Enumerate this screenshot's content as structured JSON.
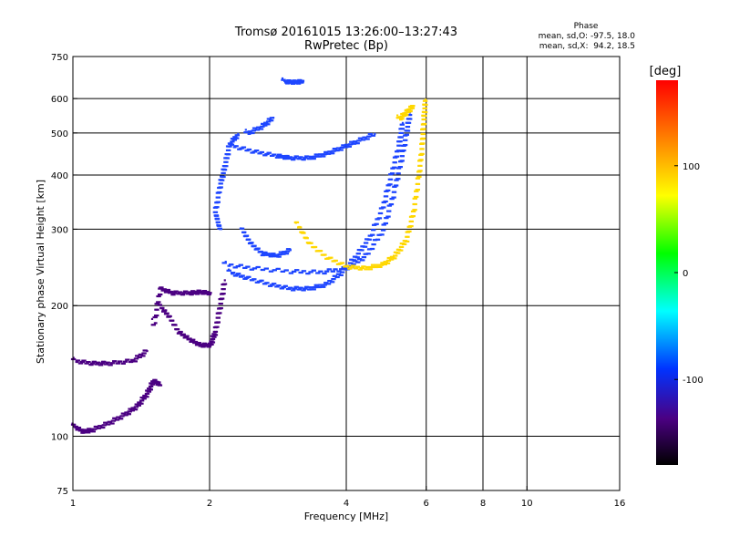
{
  "chart_data": {
    "type": "scatter",
    "title": "Tromsø 20161015 13:26:00–13:27:43",
    "subtitle": "RwPretec (Bp)",
    "xlabel": "Frequency [MHz]",
    "ylabel": "Stationary phase Virtual Height [km]",
    "x_scale": "log",
    "y_scale": "log",
    "xlim": [
      1,
      16
    ],
    "ylim": [
      75,
      750
    ],
    "x_ticks": [
      1,
      2,
      4,
      6,
      8,
      10,
      16
    ],
    "x_tick_labels": [
      "1",
      "2",
      "4",
      "6",
      "8",
      "10",
      "16"
    ],
    "y_ticks": [
      75,
      100,
      200,
      300,
      400,
      500,
      600,
      750
    ],
    "y_tick_labels": [
      "75",
      "100",
      "200",
      "300",
      "400",
      "500",
      "600",
      "750"
    ],
    "grid": true,
    "phase_stats": {
      "heading": "Phase",
      "line_o": "mean, sd,O: -97.5, 18.0",
      "line_x": "mean, sd,X:  94.2, 18.5"
    },
    "colorbar": {
      "label": "[deg]",
      "range": [
        -180,
        180
      ],
      "ticks": [
        100,
        0,
        -100
      ],
      "tick_labels": [
        "100",
        "0",
        "-100"
      ]
    },
    "series": [
      {
        "color": "#1e46ff",
        "phase_deg": -100,
        "traces": [
          {
            "points": [
              [
                2.22,
                470
              ],
              [
                2.5,
                455
              ],
              [
                2.8,
                445
              ],
              [
                3.0,
                440
              ],
              [
                3.3,
                440
              ],
              [
                3.6,
                450
              ],
              [
                3.9,
                465
              ],
              [
                4.2,
                480
              ],
              [
                4.6,
                500
              ]
            ]
          },
          {
            "points": [
              [
                2.2,
                240
              ],
              [
                2.4,
                233
              ],
              [
                2.7,
                225
              ],
              [
                3.0,
                220
              ],
              [
                3.3,
                220
              ],
              [
                3.6,
                225
              ],
              [
                3.9,
                240
              ],
              [
                4.2,
                262
              ],
              [
                4.5,
                290
              ],
              [
                4.8,
                340
              ],
              [
                5.0,
                400
              ],
              [
                5.2,
                470
              ],
              [
                5.3,
                530
              ]
            ]
          },
          {
            "points": [
              [
                2.15,
                250
              ],
              [
                2.5,
                245
              ],
              [
                3.0,
                241
              ],
              [
                3.5,
                240
              ],
              [
                4.0,
                245
              ],
              [
                4.4,
                262
              ],
              [
                4.8,
                300
              ],
              [
                5.05,
                360
              ],
              [
                5.25,
                430
              ],
              [
                5.4,
                500
              ],
              [
                5.5,
                560
              ]
            ]
          },
          {
            "points": [
              [
                2.1,
                300
              ],
              [
                2.05,
                330
              ],
              [
                2.1,
                380
              ],
              [
                2.15,
                420
              ],
              [
                2.2,
                470
              ],
              [
                2.3,
                500
              ]
            ]
          },
          {
            "points": [
              [
                2.4,
                500
              ],
              [
                2.6,
                520
              ],
              [
                2.75,
                545
              ]
            ]
          },
          {
            "points": [
              [
                2.9,
                660
              ],
              [
                3.05,
                658
              ],
              [
                3.2,
                660
              ]
            ]
          },
          {
            "points": [
              [
                2.35,
                300
              ],
              [
                2.45,
                280
              ],
              [
                2.6,
                265
              ],
              [
                2.8,
                262
              ],
              [
                3.0,
                270
              ]
            ]
          }
        ]
      },
      {
        "color": "#ffd700",
        "phase_deg": 94,
        "traces": [
          {
            "points": [
              [
                3.1,
                310
              ],
              [
                3.3,
                280
              ],
              [
                3.6,
                260
              ],
              [
                4.0,
                247
              ],
              [
                4.4,
                245
              ],
              [
                4.8,
                250
              ],
              [
                5.1,
                262
              ],
              [
                5.4,
                285
              ],
              [
                5.6,
                330
              ],
              [
                5.75,
                400
              ],
              [
                5.85,
                470
              ],
              [
                5.9,
                540
              ],
              [
                5.95,
                600
              ]
            ]
          },
          {
            "points": [
              [
                5.2,
                540
              ],
              [
                5.4,
                560
              ],
              [
                5.6,
                580
              ]
            ]
          }
        ]
      },
      {
        "color": "#4b0082",
        "phase_deg": -140,
        "traces": [
          {
            "points": [
              [
                1.0,
                150
              ],
              [
                1.1,
                148
              ],
              [
                1.2,
                148
              ],
              [
                1.35,
                150
              ],
              [
                1.45,
                158
              ]
            ]
          },
          {
            "points": [
              [
                1.0,
                106
              ],
              [
                1.05,
                103
              ],
              [
                1.1,
                104
              ],
              [
                1.2,
                108
              ],
              [
                1.3,
                113
              ],
              [
                1.38,
                118
              ],
              [
                1.45,
                126
              ],
              [
                1.5,
                135
              ],
              [
                1.55,
                132
              ]
            ]
          },
          {
            "points": [
              [
                1.5,
                180
              ],
              [
                1.55,
                220
              ],
              [
                1.65,
                215
              ],
              [
                1.8,
                215
              ],
              [
                1.9,
                216
              ],
              [
                2.0,
                215
              ]
            ]
          },
          {
            "points": [
              [
                1.55,
                200
              ],
              [
                1.62,
                190
              ],
              [
                1.7,
                175
              ],
              [
                1.8,
                168
              ],
              [
                1.9,
                163
              ],
              [
                2.0,
                163
              ],
              [
                2.05,
                175
              ],
              [
                2.1,
                200
              ],
              [
                2.15,
                230
              ]
            ]
          }
        ]
      }
    ]
  }
}
